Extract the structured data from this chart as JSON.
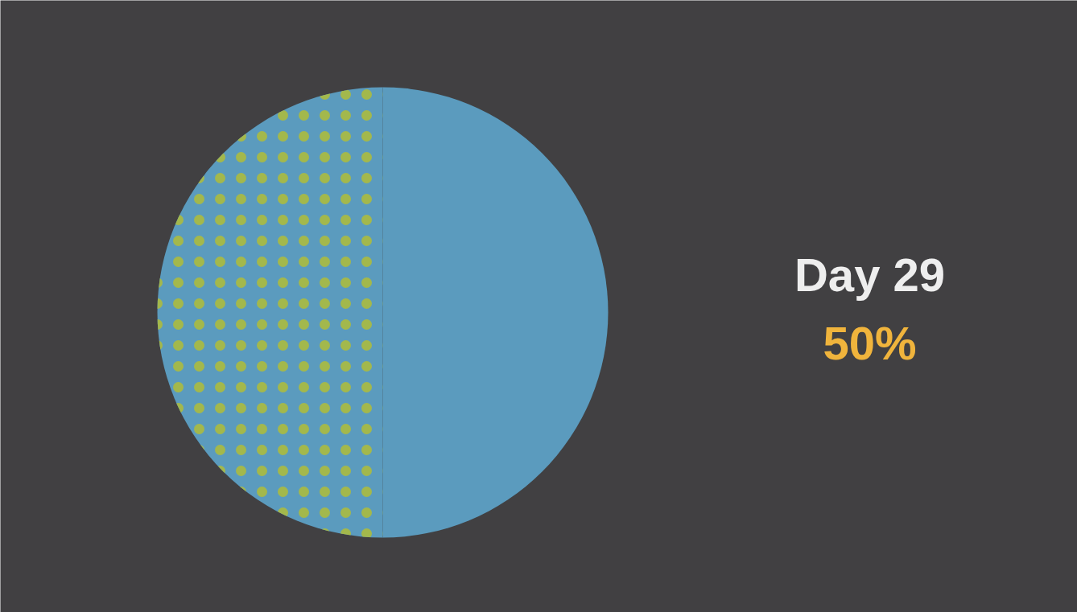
{
  "chart_data": {
    "type": "pie",
    "title": "Day 29",
    "categories": [
      null,
      null
    ],
    "values": [
      50,
      50
    ],
    "colors": [
      "#5b9bbe",
      "#5b9bbe"
    ],
    "annotations": [
      "50%"
    ]
  }
}
